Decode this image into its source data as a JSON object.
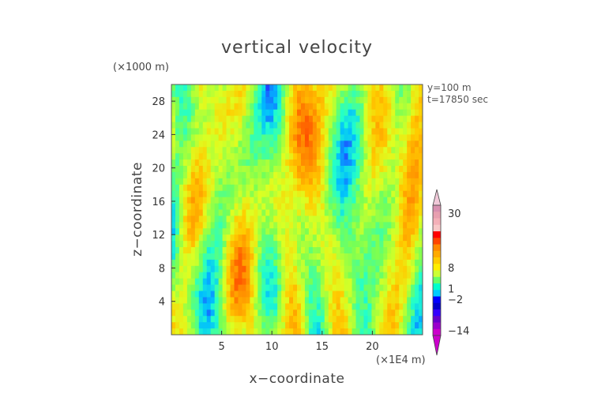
{
  "chart_data": {
    "type": "heatmap",
    "title": "vertical velocity",
    "xlabel": "x−coordinate",
    "ylabel": "z−coordinate",
    "x_unit": "(×1E4 m)",
    "y_unit": "(×1000 m)",
    "annotations": [
      "y=100  m",
      "t=17850 sec"
    ],
    "xlim": [
      0,
      25
    ],
    "ylim": [
      0,
      30
    ],
    "xticks": [
      5,
      10,
      15,
      20
    ],
    "yticks": [
      4,
      8,
      12,
      16,
      20,
      24,
      28
    ],
    "x_tick_labels": [
      "5",
      "10",
      "15",
      "20"
    ],
    "y_tick_labels": [
      "4",
      "8",
      "12",
      "16",
      "20",
      "24",
      "28"
    ],
    "colorbar": {
      "labels": [
        "30",
        "8",
        "1",
        "−2",
        "−14"
      ],
      "levels": [
        30,
        8,
        1,
        -2,
        -14
      ],
      "colors": [
        "#d890b0",
        "#e8a0b0",
        "#f4b0b8",
        "#f8c8c8",
        "#ff0000",
        "#ff4400",
        "#ff8800",
        "#ffaa00",
        "#ffcc00",
        "#ffee00",
        "#ccff33",
        "#66ff66",
        "#00ffcc",
        "#00ccff",
        "#0000ff",
        "#0000cc",
        "#3300ff",
        "#6600cc",
        "#9900cc",
        "#cc00cc"
      ]
    },
    "grid": false
  }
}
